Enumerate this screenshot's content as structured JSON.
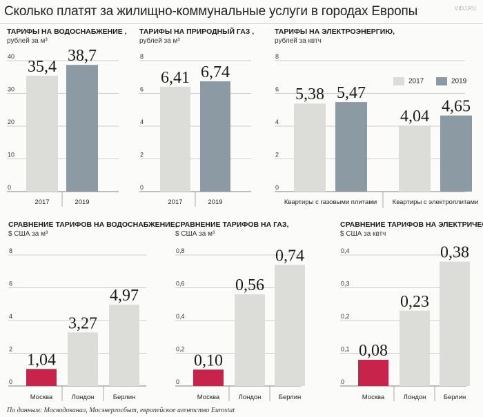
{
  "title": "Сколько платят за жилищно-коммунальные услуги в городах Европы",
  "watermark": "VIDJ.RU",
  "source": "По данным: Мосводоканал, Мосэнергосбыт, европейское агентство Eurostat",
  "colors": {
    "gray_2017": "#dcdcd9",
    "blue_2019": "#8c9ba3",
    "light": "#dcdcd9",
    "moscow_red": "#c8234a"
  },
  "legend": [
    {
      "label": "2017",
      "color": "#dcdcd9"
    },
    {
      "label": "2019",
      "color": "#8c9ba3"
    }
  ],
  "panels": [
    {
      "title": "ТАРИФЫ НА ВОДОСНАБЖЕНИЕ ,",
      "unit": "рублей за м³"
    },
    {
      "title": "ТАРИФЫ НА ПРИРОДНЫЙ ГАЗ ,",
      "unit": "рублей за м³"
    },
    {
      "title": "ТАРИФЫ НА ЭЛЕКТРОЭНЕРГИЮ,",
      "unit": "рублей за квтч"
    },
    {
      "title": "СРАВНЕНИЕ ТАРИФОВ НА ВОДОСНАБЖЕНИЕ,",
      "unit": "$ США за м³"
    },
    {
      "title": "СРАВНЕНИЕ ТАРИФОВ НА ГАЗ,",
      "unit": "$ США за м³"
    },
    {
      "title": "СРАВНЕНИЕ ТАРИФОВ НА ЭЛЕКТРИЧЕСТВО,",
      "unit": "$ США за квтч"
    }
  ],
  "chart_data": [
    {
      "type": "bar",
      "title": "ТАРИФЫ НА ВОДОСНАБЖЕНИЕ ,",
      "ylabel": "рублей за м³",
      "categories": [
        "2017",
        "2019"
      ],
      "values": [
        35.4,
        38.7
      ],
      "value_labels": [
        "35,4",
        "38,7"
      ],
      "colors": [
        "#dcdcd9",
        "#8c9ba3"
      ],
      "yticks": [
        0,
        10,
        20,
        30,
        40
      ],
      "ylim": [
        0,
        40
      ]
    },
    {
      "type": "bar",
      "title": "ТАРИФЫ НА ПРИРОДНЫЙ ГАЗ ,",
      "ylabel": "рублей за м³",
      "categories": [
        "2017",
        "2019"
      ],
      "values": [
        6.41,
        6.74
      ],
      "value_labels": [
        "6,41",
        "6,74"
      ],
      "colors": [
        "#dcdcd9",
        "#8c9ba3"
      ],
      "yticks": [
        0,
        2,
        4,
        6,
        8
      ],
      "ylim": [
        0,
        8
      ]
    },
    {
      "type": "bar",
      "title": "ТАРИФЫ НА ЭЛЕКТРОЭНЕРГИЮ,",
      "ylabel": "рублей за квтч",
      "categories": [
        "Квартиры с газовыми плитами",
        "Квартиры с электроплитами"
      ],
      "series": [
        {
          "name": "2017",
          "values": [
            5.38,
            4.04
          ],
          "value_labels": [
            "5,38",
            "4,04"
          ],
          "color": "#dcdcd9"
        },
        {
          "name": "2019",
          "values": [
            5.47,
            4.65
          ],
          "value_labels": [
            "5,47",
            "4,65"
          ],
          "color": "#8c9ba3"
        }
      ],
      "yticks": [
        0,
        2,
        4,
        6,
        8
      ],
      "ylim": [
        0,
        8
      ],
      "legend": "top-right"
    },
    {
      "type": "bar",
      "title": "СРАВНЕНИЕ ТАРИФОВ НА ВОДОСНАБЖЕНИЕ,",
      "ylabel": "$ США за м³",
      "categories": [
        "Москва",
        "Лондон",
        "Берлин"
      ],
      "values": [
        1.04,
        3.27,
        4.97
      ],
      "value_labels": [
        "1,04",
        "3,27",
        "4,97"
      ],
      "colors": [
        "#c8234a",
        "#dcdcd9",
        "#dcdcd9"
      ],
      "yticks": [
        0,
        2,
        4,
        6,
        8
      ],
      "ytick_labels": [
        "0",
        "2",
        "4",
        "6",
        "8"
      ],
      "ylim": [
        0,
        8
      ]
    },
    {
      "type": "bar",
      "title": "СРАВНЕНИЕ ТАРИФОВ НА ГАЗ,",
      "ylabel": "$ США за м³",
      "categories": [
        "Москва",
        "Лондон",
        "Берлин"
      ],
      "values": [
        0.1,
        0.56,
        0.74
      ],
      "value_labels": [
        "0,10",
        "0,56",
        "0,74"
      ],
      "colors": [
        "#c8234a",
        "#dcdcd9",
        "#dcdcd9"
      ],
      "yticks": [
        0,
        0.2,
        0.4,
        0.6,
        0.8
      ],
      "ytick_labels": [
        "0",
        "0,2",
        "0,4",
        "0,6",
        "0,8"
      ],
      "ylim": [
        0,
        0.8
      ]
    },
    {
      "type": "bar",
      "title": "СРАВНЕНИЕ ТАРИФОВ НА ЭЛЕКТРИЧЕСТВО,",
      "ylabel": "$ США за квтч",
      "categories": [
        "Москва",
        "Лондон",
        "Берлин"
      ],
      "values": [
        0.08,
        0.23,
        0.38
      ],
      "value_labels": [
        "0,08",
        "0,23",
        "0,38"
      ],
      "colors": [
        "#c8234a",
        "#dcdcd9",
        "#dcdcd9"
      ],
      "yticks": [
        0,
        0.1,
        0.2,
        0.3,
        0.4
      ],
      "ytick_labels": [
        "0",
        "0,1",
        "0,2",
        "0,3",
        "0,4"
      ],
      "ylim": [
        0,
        0.4
      ]
    }
  ]
}
